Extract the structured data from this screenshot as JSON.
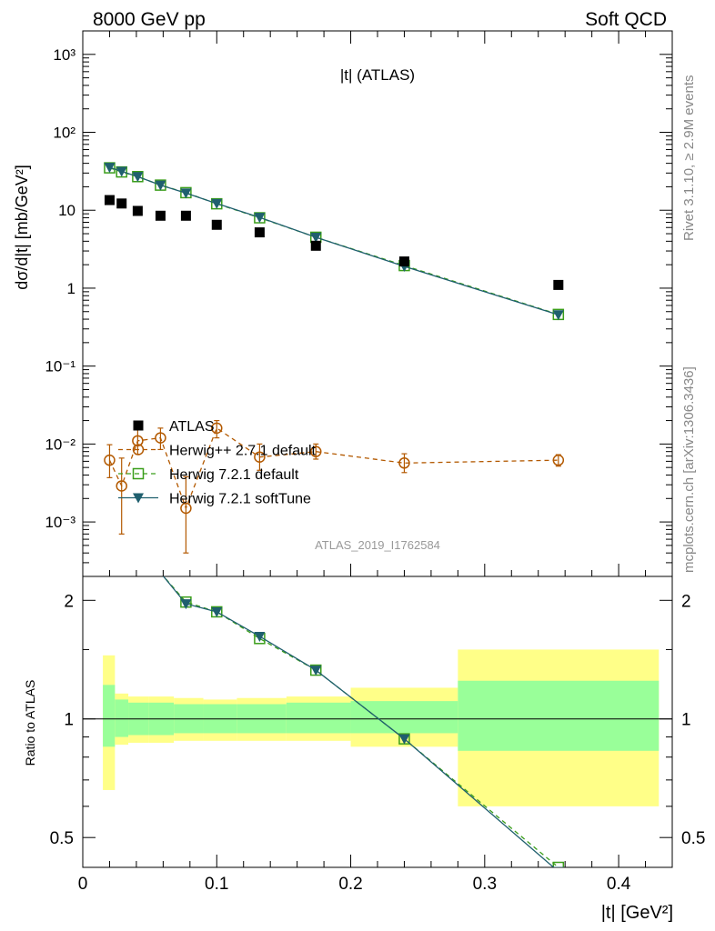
{
  "header": {
    "left": "8000 GeV pp",
    "right": "Soft QCD"
  },
  "side_labels": {
    "rivet": "Rivet 3.1.10, ≥ 2.9M events",
    "mcplots": "mcplots.cern.ch [arXiv:1306.3436]"
  },
  "chart_data": {
    "type": "scatter",
    "title": "|t| (ATLAS)",
    "watermark": "ATLAS_2019_I1762584",
    "xlabel": "|t| [GeV²]",
    "ylabel": "dσ/d|t| [mb/GeV²]",
    "ratio_ylabel": "Ratio to ATLAS",
    "xlim": [
      0,
      0.44
    ],
    "ylim": [
      0.0002,
      2000
    ],
    "yscale": "log",
    "ratio_ylim": [
      0.42,
      2.3
    ],
    "ratio_yscale": "log",
    "x_ticks": [
      "0",
      "0.1",
      "0.2",
      "0.3",
      "0.4"
    ],
    "y_ticks": [
      "10⁻³",
      "10⁻²",
      "10⁻¹",
      "1",
      "10",
      "10²",
      "10³"
    ],
    "ratio_ticks": [
      "0.5",
      "1",
      "2"
    ],
    "legend_position": "lower-left",
    "series": [
      {
        "name": "ATLAS",
        "color": "#000000",
        "marker": "square",
        "x": [
          0.02,
          0.029,
          0.041,
          0.058,
          0.077,
          0.1,
          0.132,
          0.174,
          0.24,
          0.355
        ],
        "y": [
          13.5,
          12.2,
          9.8,
          8.5,
          8.5,
          6.5,
          5.2,
          3.5,
          2.2,
          1.1
        ]
      },
      {
        "name": "Herwig++ 2.7.1 default",
        "color": "#b35900",
        "marker": "circle",
        "x": [
          0.02,
          0.029,
          0.041,
          0.058,
          0.077,
          0.1,
          0.132,
          0.174,
          0.24,
          0.355
        ],
        "y": [
          0.0062,
          0.0029,
          0.011,
          0.012,
          0.0015,
          0.016,
          0.0068,
          0.008,
          0.0057,
          0.0062
        ],
        "y_low": [
          0.0037,
          0.0007,
          0.0074,
          0.0085,
          0.0004,
          0.012,
          0.0046,
          0.0064,
          0.0043,
          0.0052
        ],
        "y_high": [
          0.0098,
          0.0066,
          0.016,
          0.016,
          0.0038,
          0.02,
          0.01,
          0.01,
          0.0075,
          0.0073
        ]
      },
      {
        "name": "Herwig 7.2.1 default",
        "color": "#3a9e1a",
        "marker": "open-square",
        "x": [
          0.02,
          0.029,
          0.041,
          0.058,
          0.077,
          0.1,
          0.132,
          0.174,
          0.24,
          0.355
        ],
        "y": [
          35,
          31,
          27,
          21,
          16.8,
          12.1,
          8.0,
          4.5,
          1.95,
          0.46
        ]
      },
      {
        "name": "Herwig 7.2.1 softTune",
        "color": "#1f5f6e",
        "marker": "triangle-down",
        "x": [
          0.02,
          0.029,
          0.041,
          0.058,
          0.077,
          0.1,
          0.132,
          0.174,
          0.24,
          0.355
        ],
        "y": [
          35.5,
          31.5,
          27,
          21,
          16.6,
          12.2,
          8.1,
          4.5,
          1.9,
          0.455
        ]
      }
    ],
    "ratio": {
      "bin_edges": [
        0.015,
        0.024,
        0.034,
        0.049,
        0.068,
        0.09,
        0.115,
        0.152,
        0.2,
        0.28,
        0.43
      ],
      "band_stat_low": [
        0.85,
        0.9,
        0.91,
        0.91,
        0.92,
        0.92,
        0.92,
        0.92,
        0.92,
        0.83
      ],
      "band_stat_high": [
        1.22,
        1.12,
        1.1,
        1.1,
        1.09,
        1.09,
        1.09,
        1.1,
        1.11,
        1.25
      ],
      "band_tot_low": [
        0.66,
        0.86,
        0.87,
        0.87,
        0.88,
        0.88,
        0.88,
        0.88,
        0.85,
        0.6
      ],
      "band_tot_high": [
        1.45,
        1.16,
        1.14,
        1.14,
        1.13,
        1.12,
        1.13,
        1.14,
        1.2,
        1.5
      ],
      "herwig_default": [
        [
          0.077,
          1.98
        ],
        [
          0.1,
          1.87
        ],
        [
          0.132,
          1.6
        ],
        [
          0.174,
          1.33
        ],
        [
          0.24,
          0.89
        ],
        [
          0.355,
          0.42
        ]
      ],
      "herwig_softtune": [
        [
          0.077,
          1.96
        ],
        [
          0.1,
          1.87
        ],
        [
          0.132,
          1.62
        ],
        [
          0.174,
          1.33
        ],
        [
          0.24,
          0.89
        ],
        [
          0.355,
          0.41
        ]
      ]
    }
  }
}
